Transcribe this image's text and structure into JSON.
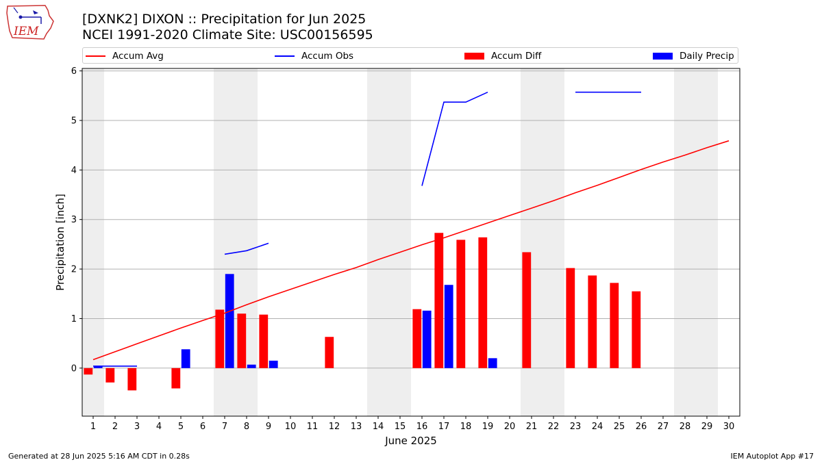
{
  "header": {
    "logo_text": "IEM",
    "title_line1": "[DXNK2] DIXON :: Precipitation for Jun 2025",
    "title_line2": "NCEI 1991-2020 Climate Site: USC00156595"
  },
  "legend": {
    "items": [
      {
        "label": "Accum Avg",
        "kind": "line",
        "color": "#ff0000"
      },
      {
        "label": "Accum Obs",
        "kind": "line",
        "color": "#0000ff"
      },
      {
        "label": "Accum Diff",
        "kind": "patch",
        "color": "#ff0000"
      },
      {
        "label": "Daily Precip",
        "kind": "patch",
        "color": "#0000ff"
      }
    ]
  },
  "footer": {
    "left": "Generated at 28 Jun 2025 5:16 AM CDT in 0.28s",
    "right": "IEM Autoplot App #17"
  },
  "chart_data": {
    "type": "bar",
    "xlabel": "June 2025",
    "ylabel": "Precipitation [inch]",
    "x": [
      1,
      2,
      3,
      4,
      5,
      6,
      7,
      8,
      9,
      10,
      11,
      12,
      13,
      14,
      15,
      16,
      17,
      18,
      19,
      20,
      21,
      22,
      23,
      24,
      25,
      26,
      27,
      28,
      29,
      30
    ],
    "xlim": [
      0.5,
      30.5
    ],
    "ylim": [
      -0.97,
      6.05
    ],
    "yticks": [
      0,
      1,
      2,
      3,
      4,
      5,
      6
    ],
    "grid": "horizontal",
    "legend_position": "top",
    "weekend_shading": [
      [
        0.5,
        1.5
      ],
      [
        6.5,
        8.5
      ],
      [
        13.5,
        15.5
      ],
      [
        20.5,
        22.5
      ],
      [
        27.5,
        29.5
      ]
    ],
    "series": [
      {
        "name": "Accum Avg",
        "type": "line",
        "color": "#ff0000",
        "values": [
          0.17,
          0.33,
          0.49,
          0.65,
          0.81,
          0.96,
          1.11,
          1.28,
          1.44,
          1.59,
          1.74,
          1.89,
          2.03,
          2.19,
          2.34,
          2.49,
          2.63,
          2.78,
          2.93,
          3.08,
          3.23,
          3.38,
          3.54,
          3.69,
          3.85,
          4.01,
          4.16,
          4.3,
          4.45,
          4.59
        ]
      },
      {
        "name": "Accum Obs",
        "type": "line",
        "color": "#0000ff",
        "values": [
          0.04,
          0.04,
          0.04,
          null,
          null,
          null,
          2.3,
          2.37,
          2.52,
          null,
          null,
          null,
          null,
          null,
          null,
          3.68,
          5.37,
          5.37,
          5.57,
          null,
          null,
          null,
          5.57,
          5.57,
          5.57,
          5.57,
          null,
          null,
          null,
          null
        ]
      },
      {
        "name": "Accum Diff",
        "type": "bar",
        "color": "#ff0000",
        "values": [
          -0.13,
          -0.29,
          -0.45,
          null,
          -0.41,
          null,
          1.18,
          1.1,
          1.08,
          null,
          null,
          0.63,
          null,
          null,
          null,
          1.19,
          2.73,
          2.59,
          2.64,
          null,
          2.34,
          null,
          2.02,
          1.87,
          1.72,
          1.55,
          null,
          null,
          null,
          null
        ]
      },
      {
        "name": "Daily Precip",
        "type": "bar",
        "color": "#0000ff",
        "values": [
          0.04,
          null,
          null,
          null,
          0.38,
          null,
          1.9,
          0.07,
          0.15,
          null,
          null,
          null,
          null,
          null,
          null,
          1.16,
          1.68,
          null,
          0.2,
          null,
          null,
          null,
          null,
          null,
          null,
          null,
          null,
          null,
          null,
          null
        ]
      }
    ]
  }
}
